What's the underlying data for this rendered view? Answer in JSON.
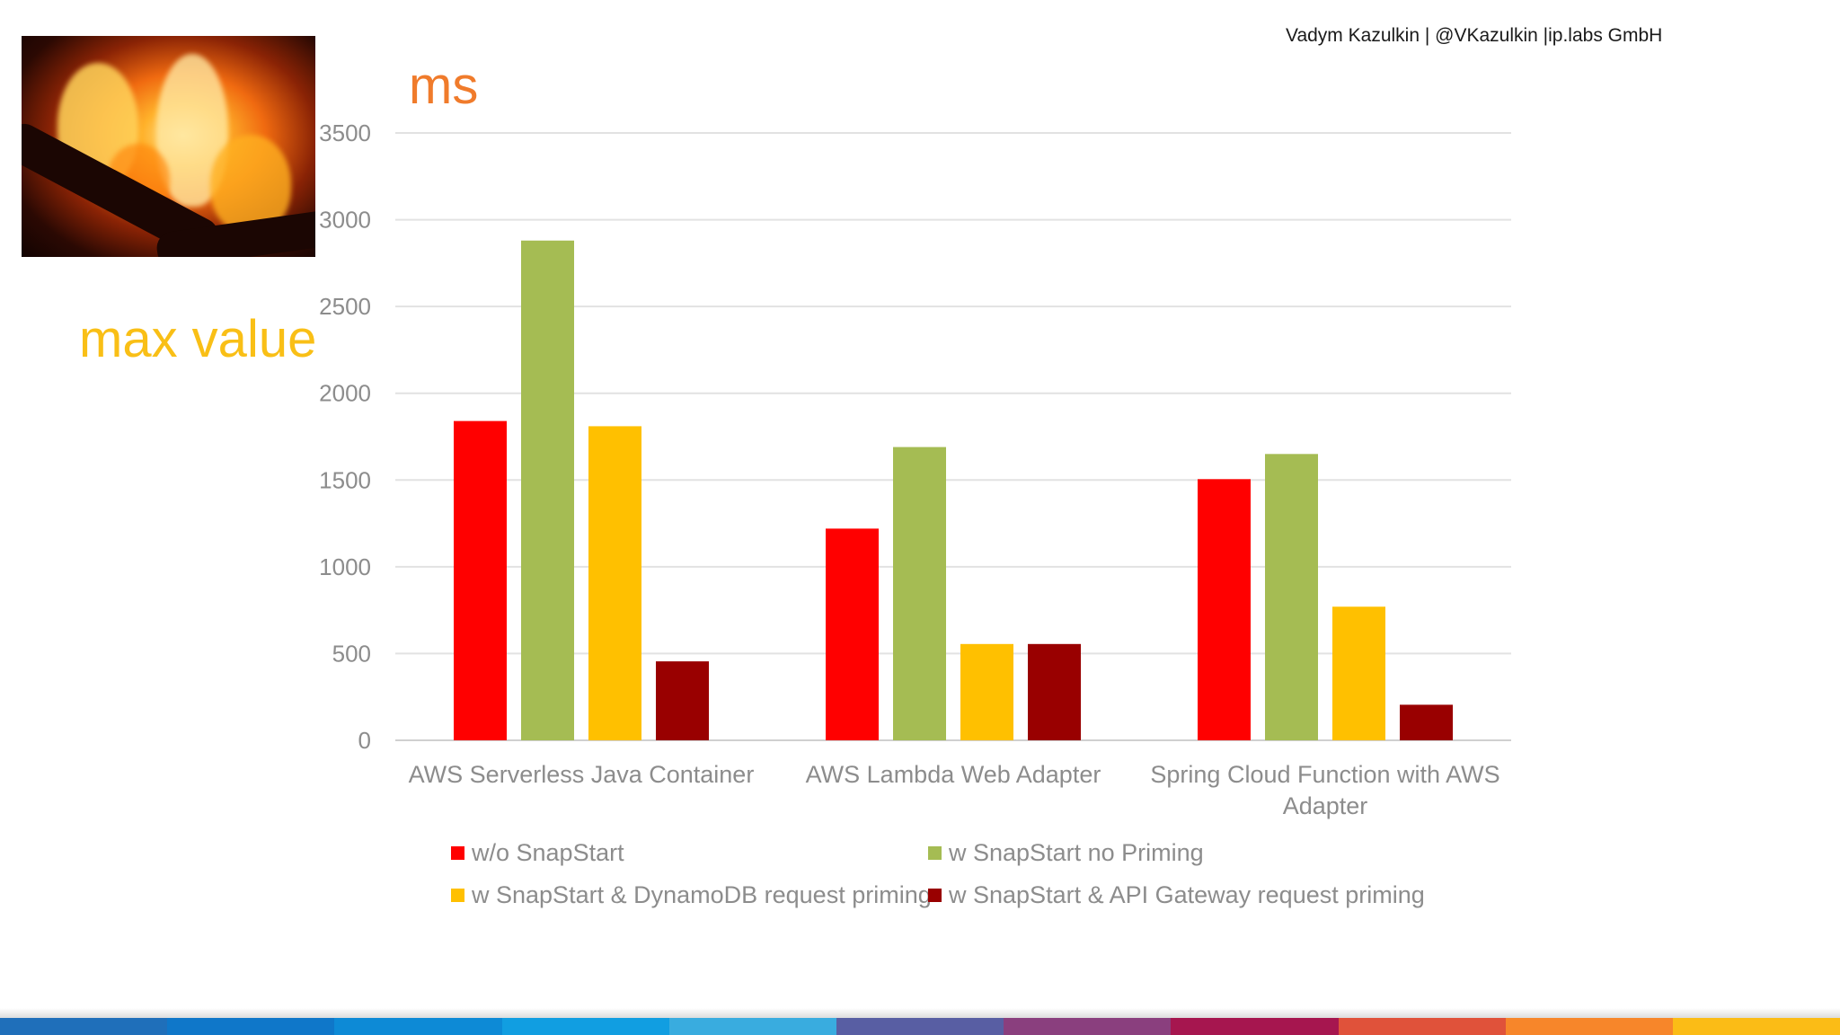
{
  "header": {
    "author": "Vadym Kazulkin | @VKazulkin |ip.labs GmbH"
  },
  "side_title": "max value",
  "chart_data": {
    "type": "bar",
    "title": "",
    "ylabel": "ms",
    "xlabel": "",
    "ylim": [
      0,
      3500
    ],
    "yticks": [
      0,
      500,
      1000,
      1500,
      2000,
      2500,
      3000,
      3500
    ],
    "grid": true,
    "legend_position": "bottom",
    "categories": [
      [
        "AWS Serverless Java Container"
      ],
      [
        "AWS Lambda Web Adapter"
      ],
      [
        "Spring Cloud Function with AWS",
        "Adapter"
      ]
    ],
    "series": [
      {
        "name": "w/o SnapStart",
        "color": "#ff0000",
        "values": [
          1840,
          1220,
          1505
        ]
      },
      {
        "name": "w SnapStart no Priming",
        "color": "#a5bc53",
        "values": [
          2880,
          1690,
          1650
        ]
      },
      {
        "name": "w SnapStart & DynamoDB request priming",
        "color": "#ffc000",
        "values": [
          1810,
          555,
          770
        ]
      },
      {
        "name": "w SnapStart & API Gateway request priming",
        "color": "#990000",
        "values": [
          455,
          555,
          205
        ]
      }
    ]
  },
  "footer_colors": [
    "#1f6fba",
    "#0f77c9",
    "#0d8ad6",
    "#119ee1",
    "#39acdf",
    "#585ea3",
    "#8a3f7e",
    "#a6164f",
    "#e0523a",
    "#f7862a",
    "#fbbc16"
  ]
}
